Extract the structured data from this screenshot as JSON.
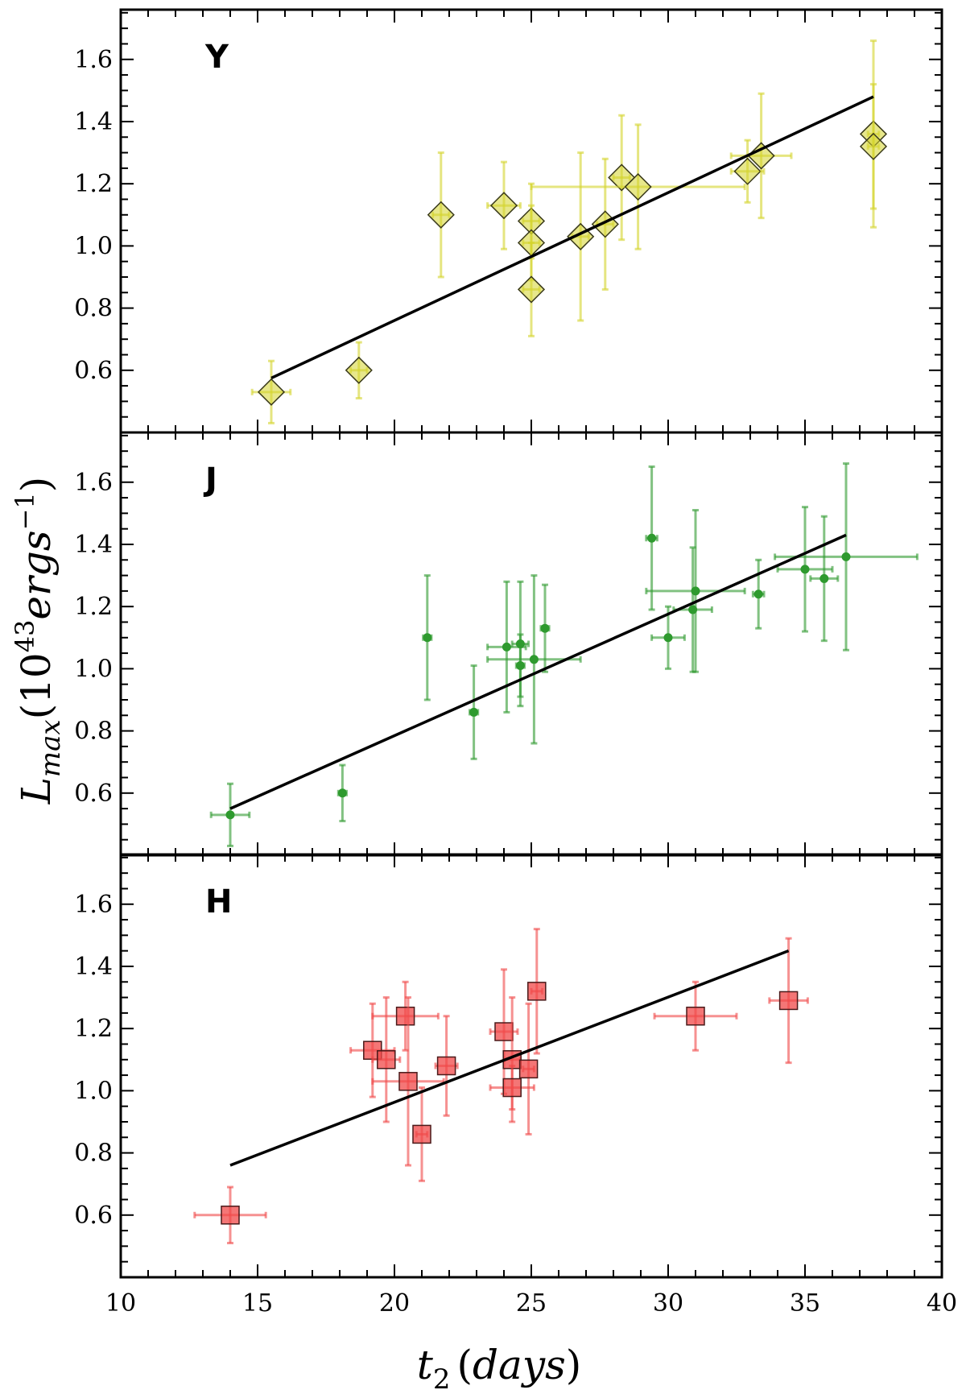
{
  "chart_data": {
    "type": "scatter",
    "xlabel": "t₂ (days)",
    "ylabel": "L_max (10⁴³ ergs⁻¹)",
    "xlabel_parts": {
      "var": "t",
      "sub": "2",
      "open": "(",
      "unit": "days",
      "close": ")"
    },
    "ylabel_parts": {
      "var": "L",
      "sub": "max",
      "open": "(",
      "base": "10",
      "exp": "43",
      "unit": "ergs",
      "uexp": "−1",
      "close": ")"
    },
    "xlim": [
      10,
      40
    ],
    "x_ticks": [
      10,
      15,
      20,
      25,
      30,
      35,
      40
    ],
    "x_tick_labels": [
      "10",
      "15",
      "20",
      "25",
      "30",
      "35",
      "40"
    ],
    "ylim": [
      0.4,
      1.76
    ],
    "y_ticks": [
      0.6,
      0.8,
      1.0,
      1.2,
      1.4,
      1.6
    ],
    "y_tick_labels": [
      "0.6",
      "0.8",
      "1.0",
      "1.2",
      "1.4",
      "1.6"
    ],
    "panels": [
      {
        "label": "Y",
        "marker": "diamond",
        "color": "#d4d42c",
        "fit": {
          "x": [
            15.5,
            37.5
          ],
          "y": [
            0.575,
            1.48
          ]
        },
        "points": [
          {
            "x": 15.5,
            "y": 0.53,
            "xerr": 0.7,
            "yerr": 0.1
          },
          {
            "x": 18.7,
            "y": 0.6,
            "xerr": 0.3,
            "yerr": 0.09
          },
          {
            "x": 21.7,
            "y": 1.1,
            "xerr": 0.3,
            "yerr": 0.2
          },
          {
            "x": 24.0,
            "y": 1.13,
            "xerr": 0.6,
            "yerr": 0.14
          },
          {
            "x": 25.0,
            "y": 1.08,
            "xerr": 0.3,
            "yerr": 0.12
          },
          {
            "x": 25.0,
            "y": 1.01,
            "xerr": 0.3,
            "yerr": 0.12
          },
          {
            "x": 25.0,
            "y": 0.86,
            "xerr": 0.3,
            "yerr": 0.15
          },
          {
            "x": 26.8,
            "y": 1.03,
            "xerr": 0.3,
            "yerr": 0.27
          },
          {
            "x": 27.7,
            "y": 1.07,
            "xerr": 0.3,
            "yerr": 0.21
          },
          {
            "x": 28.3,
            "y": 1.22,
            "xerr": 0.3,
            "yerr": 0.2
          },
          {
            "x": 28.9,
            "y": 1.19,
            "xerr": 3.9,
            "yerr": 0.2
          },
          {
            "x": 32.9,
            "y": 1.24,
            "xerr": 0.6,
            "yerr": 0.1
          },
          {
            "x": 33.4,
            "y": 1.29,
            "xerr": 1.1,
            "yerr": 0.2
          },
          {
            "x": 37.5,
            "y": 1.36,
            "xerr": 0.2,
            "yerr": 0.3
          },
          {
            "x": 37.5,
            "y": 1.32,
            "xerr": 0.2,
            "yerr": 0.2
          }
        ]
      },
      {
        "label": "J",
        "marker": "circle",
        "color": "#2e9a2e",
        "fit": {
          "x": [
            14.0,
            36.5
          ],
          "y": [
            0.55,
            1.43
          ]
        },
        "points": [
          {
            "x": 14.0,
            "y": 0.53,
            "xerr": 0.7,
            "yerr": 0.1
          },
          {
            "x": 18.1,
            "y": 0.6,
            "xerr": 0.15,
            "yerr": 0.09
          },
          {
            "x": 21.2,
            "y": 1.1,
            "xerr": 0.15,
            "yerr": 0.2
          },
          {
            "x": 22.9,
            "y": 0.86,
            "xerr": 0.15,
            "yerr": 0.15
          },
          {
            "x": 24.1,
            "y": 1.07,
            "xerr": 0.7,
            "yerr": 0.21
          },
          {
            "x": 24.6,
            "y": 1.08,
            "xerr": 0.3,
            "yerr": 0.2
          },
          {
            "x": 24.6,
            "y": 1.01,
            "xerr": 0.15,
            "yerr": 0.1
          },
          {
            "x": 25.1,
            "y": 1.03,
            "xerr": 1.7,
            "yerr": 0.27
          },
          {
            "x": 25.5,
            "y": 1.13,
            "xerr": 0.15,
            "yerr": 0.14
          },
          {
            "x": 29.4,
            "y": 1.42,
            "xerr": 0.2,
            "yerr": 0.23
          },
          {
            "x": 30.0,
            "y": 1.1,
            "xerr": 0.6,
            "yerr": 0.1
          },
          {
            "x": 30.9,
            "y": 1.19,
            "xerr": 0.7,
            "yerr": 0.2
          },
          {
            "x": 31.0,
            "y": 1.25,
            "xerr": 1.8,
            "yerr": 0.26
          },
          {
            "x": 33.3,
            "y": 1.24,
            "xerr": 0.2,
            "yerr": 0.11
          },
          {
            "x": 35.0,
            "y": 1.32,
            "xerr": 1.0,
            "yerr": 0.2
          },
          {
            "x": 35.7,
            "y": 1.29,
            "xerr": 0.5,
            "yerr": 0.2
          },
          {
            "x": 36.5,
            "y": 1.36,
            "xerr": 2.6,
            "yerr": 0.3
          }
        ]
      },
      {
        "label": "H",
        "marker": "square",
        "color": "#f04848",
        "fit": {
          "x": [
            14.0,
            34.4
          ],
          "y": [
            0.76,
            1.45
          ]
        },
        "points": [
          {
            "x": 14.0,
            "y": 0.6,
            "xerr": 1.3,
            "yerr": 0.09
          },
          {
            "x": 19.2,
            "y": 1.13,
            "xerr": 0.8,
            "yerr": 0.15
          },
          {
            "x": 19.7,
            "y": 1.1,
            "xerr": 0.5,
            "yerr": 0.2
          },
          {
            "x": 20.4,
            "y": 1.24,
            "xerr": 1.2,
            "yerr": 0.11
          },
          {
            "x": 20.5,
            "y": 1.03,
            "xerr": 1.3,
            "yerr": 0.27
          },
          {
            "x": 21.0,
            "y": 0.86,
            "xerr": 0.2,
            "yerr": 0.15
          },
          {
            "x": 21.9,
            "y": 1.08,
            "xerr": 0.4,
            "yerr": 0.16
          },
          {
            "x": 24.0,
            "y": 1.19,
            "xerr": 0.5,
            "yerr": 0.2
          },
          {
            "x": 24.3,
            "y": 1.1,
            "xerr": 0.3,
            "yerr": 0.2
          },
          {
            "x": 24.3,
            "y": 1.01,
            "xerr": 0.8,
            "yerr": 0.07
          },
          {
            "x": 24.9,
            "y": 1.07,
            "xerr": 0.2,
            "yerr": 0.21
          },
          {
            "x": 25.2,
            "y": 1.32,
            "xerr": 0.2,
            "yerr": 0.2
          },
          {
            "x": 31.0,
            "y": 1.24,
            "xerr": 1.5,
            "yerr": 0.11
          },
          {
            "x": 34.4,
            "y": 1.29,
            "xerr": 0.7,
            "yerr": 0.2
          }
        ]
      }
    ]
  }
}
